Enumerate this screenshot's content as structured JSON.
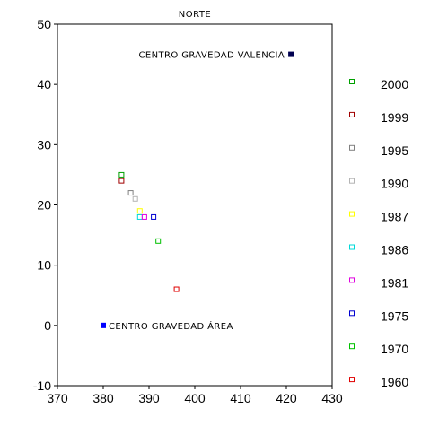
{
  "chart_data": {
    "type": "scatter",
    "title": "NORTE",
    "xlabel": "",
    "ylabel": "",
    "xlim": [
      370,
      430
    ],
    "ylim": [
      -10,
      50
    ],
    "xticks": [
      370,
      380,
      390,
      400,
      410,
      420,
      430
    ],
    "yticks": [
      -10,
      0,
      10,
      20,
      30,
      40,
      50
    ],
    "grid": false,
    "legend_position": "right",
    "series": [
      {
        "name": "2000",
        "color": "#00a000",
        "x": [
          384
        ],
        "y": [
          25
        ]
      },
      {
        "name": "1999",
        "color": "#a00000",
        "x": [
          384
        ],
        "y": [
          24
        ]
      },
      {
        "name": "1995",
        "color": "#808080",
        "x": [
          386
        ],
        "y": [
          22
        ]
      },
      {
        "name": "1990",
        "color": "#b4b4b4",
        "x": [
          387
        ],
        "y": [
          21
        ]
      },
      {
        "name": "1987",
        "color": "#ffff00",
        "x": [
          388
        ],
        "y": [
          19
        ]
      },
      {
        "name": "1986",
        "color": "#00d8d8",
        "x": [
          388
        ],
        "y": [
          18
        ]
      },
      {
        "name": "1981",
        "color": "#e000e0",
        "x": [
          389
        ],
        "y": [
          18
        ]
      },
      {
        "name": "1975",
        "color": "#0000d0",
        "x": [
          391
        ],
        "y": [
          18
        ]
      },
      {
        "name": "1970",
        "color": "#00c000",
        "x": [
          392
        ],
        "y": [
          14
        ]
      },
      {
        "name": "1960",
        "color": "#e00000",
        "x": [
          396
        ],
        "y": [
          6
        ]
      }
    ],
    "annotations": [
      {
        "text": "CENTRO GRAVEDAD VALENCIA",
        "x": 421,
        "y": 45,
        "color": "#000050",
        "label_side": "left"
      },
      {
        "text": "CENTRO GRAVEDAD ÁREA",
        "x": 380,
        "y": 0,
        "color": "#0000ff",
        "label_side": "right"
      }
    ]
  }
}
